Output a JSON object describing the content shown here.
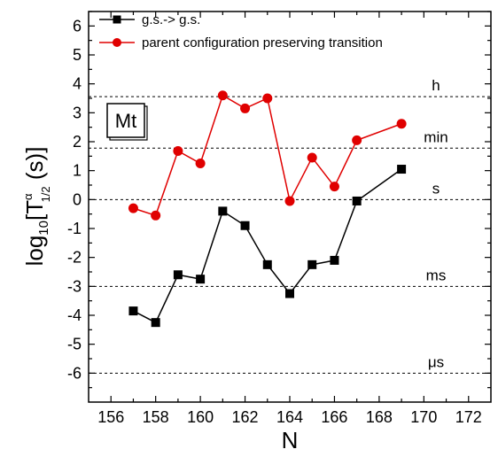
{
  "chart_data": {
    "type": "line",
    "xlabel": "N",
    "ylabel": {
      "base": "log",
      "sub": "10",
      "open": "[T",
      "sup": "α",
      "halfsub": "1/2",
      "close": " (s)]"
    },
    "xlim": [
      155,
      173
    ],
    "ylim": [
      -7,
      6.5
    ],
    "x_ticks": [
      156,
      158,
      160,
      162,
      164,
      166,
      168,
      170,
      172
    ],
    "y_ticks": [
      -6,
      -5,
      -4,
      -3,
      -2,
      -1,
      0,
      1,
      2,
      3,
      4,
      5,
      6
    ],
    "grid": false,
    "legend_position": "top-left",
    "element_label": "Mt",
    "series": [
      {
        "name": "g.s.-> g.s.",
        "color": "#000000",
        "marker": "square",
        "x": [
          157,
          158,
          159,
          160,
          161,
          162,
          163,
          164,
          165,
          166,
          167,
          169
        ],
        "values": [
          -3.85,
          -4.25,
          -2.6,
          -2.75,
          -0.4,
          -0.9,
          -2.25,
          -3.25,
          -2.25,
          -2.1,
          -0.05,
          1.05
        ]
      },
      {
        "name": "parent configuration preserving transition",
        "color": "#e00000",
        "marker": "circle",
        "x": [
          157,
          158,
          159,
          160,
          161,
          162,
          163,
          164,
          165,
          166,
          167,
          169
        ],
        "values": [
          -0.3,
          -0.55,
          1.68,
          1.25,
          3.6,
          3.15,
          3.5,
          -0.05,
          1.45,
          0.45,
          2.05,
          2.62
        ]
      }
    ],
    "reference_lines": [
      {
        "label": "h",
        "y": 3.556
      },
      {
        "label": "min",
        "y": 1.778
      },
      {
        "label": "s",
        "y": 0
      },
      {
        "label": "ms",
        "y": -3
      },
      {
        "label": "μs",
        "y": -6
      }
    ]
  }
}
